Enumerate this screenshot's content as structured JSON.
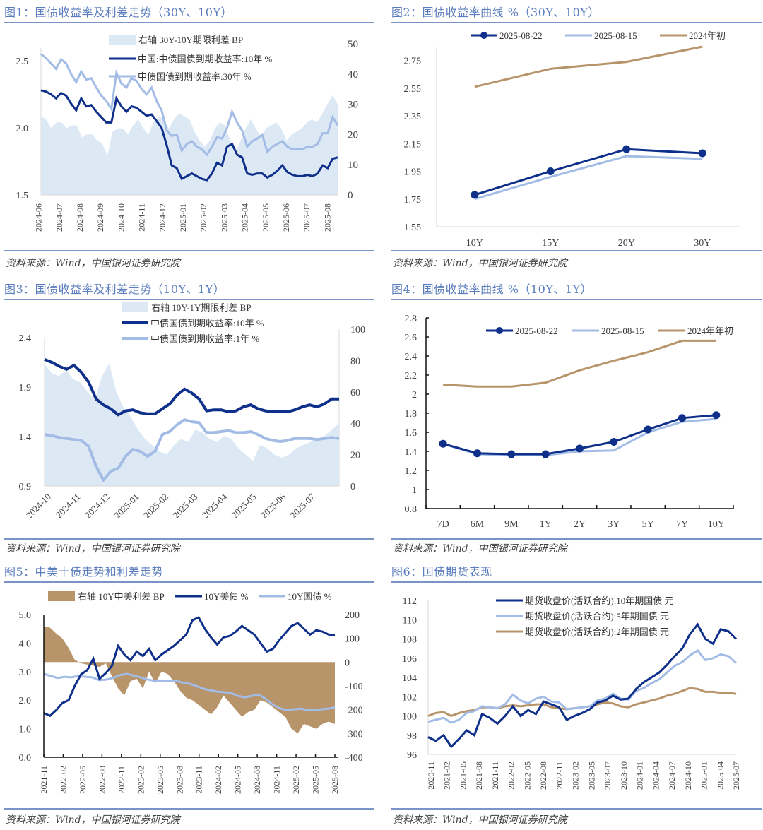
{
  "panels": [
    {
      "id": "fig1",
      "title": "图1：国债收益率及利差走势（30Y、10Y）",
      "source": "资料来源：Wind，中国银河证券研究院"
    },
    {
      "id": "fig2",
      "title": "图2：国债收益率曲线 %（30Y、10Y）",
      "source": "资料来源：Wind，中国银河证券研究院"
    },
    {
      "id": "fig3",
      "title": "图3：国债收益率及利差走势（10Y、1Y）",
      "source": "资料来源：Wind，中国银河证券研究院"
    },
    {
      "id": "fig4",
      "title": "图4：国债收益率曲线 %（10Y、1Y）",
      "source": "资料来源：Wind，中国银河证券研究院"
    },
    {
      "id": "fig5",
      "title": "图5：中美十债走势和利差走势",
      "source": "资料来源：Wind，中国银河证券研究院"
    },
    {
      "id": "fig6",
      "title": "图6：国债期货表现",
      "source": "资料来源：Wind，中国银河证券研究院"
    }
  ],
  "colors": {
    "dark_blue": "#0e2f8a",
    "light_blue": "#a3bce6",
    "area_blue": "#dde8f5",
    "tan": "#b8946a",
    "title_blue": "#5b7dbd"
  },
  "chart_data": [
    {
      "id": "fig1",
      "type": "line",
      "title": "国债收益率及利差走势（30Y、10Y）",
      "categories": [
        "2024-06",
        "2024-07",
        "2024-08",
        "2024-09",
        "2024-10",
        "2024-11",
        "2024-12",
        "2025-01",
        "2025-02",
        "2025-03",
        "2025-04",
        "2025-05",
        "2025-06",
        "2025-07",
        "2025-08"
      ],
      "ylim": [
        1.5,
        2.5
      ],
      "yticks": [
        "1.5",
        "2.0",
        "2.5"
      ],
      "y2lim": [
        0,
        50
      ],
      "y2ticks": [
        "0",
        "10",
        "20",
        "30",
        "40",
        "50"
      ],
      "series": [
        {
          "name": "右轴 30Y-10Y期限利差 BP",
          "axis": "right",
          "kind": "area",
          "values": [
            26,
            25,
            22,
            24,
            24,
            22,
            23,
            23,
            19,
            20,
            20,
            18,
            17,
            13,
            21,
            22,
            22,
            20,
            23,
            25,
            22,
            20,
            24,
            26,
            25,
            22,
            25,
            27,
            26,
            25,
            21,
            18,
            16,
            18,
            22,
            24,
            23,
            18,
            14,
            18,
            22,
            25,
            22,
            19,
            22,
            23,
            24,
            22,
            18,
            20,
            21,
            22,
            24,
            25,
            24,
            27,
            30,
            33,
            30
          ]
        },
        {
          "name": "中国:中债国债到期收益率:10年 %",
          "axis": "left",
          "kind": "line",
          "values": [
            2.28,
            2.27,
            2.25,
            2.22,
            2.26,
            2.24,
            2.18,
            2.13,
            2.22,
            2.16,
            2.17,
            2.12,
            2.08,
            2.04,
            2.04,
            2.22,
            2.16,
            2.12,
            2.16,
            2.15,
            2.12,
            2.09,
            2.1,
            2.05,
            2.0,
            1.87,
            1.72,
            1.7,
            1.62,
            1.64,
            1.66,
            1.64,
            1.62,
            1.61,
            1.66,
            1.74,
            1.72,
            1.86,
            1.88,
            1.8,
            1.78,
            1.66,
            1.65,
            1.66,
            1.66,
            1.63,
            1.65,
            1.68,
            1.72,
            1.67,
            1.65,
            1.64,
            1.64,
            1.65,
            1.64,
            1.66,
            1.72,
            1.7,
            1.77,
            1.78
          ]
        },
        {
          "name": "中债国债到期收益率:30年 %",
          "axis": "left",
          "kind": "line",
          "values": [
            2.55,
            2.52,
            2.48,
            2.44,
            2.51,
            2.48,
            2.4,
            2.34,
            2.42,
            2.36,
            2.37,
            2.3,
            2.24,
            2.2,
            2.14,
            2.41,
            2.33,
            2.3,
            2.37,
            2.35,
            2.29,
            2.25,
            2.3,
            2.2,
            2.13,
            1.98,
            1.94,
            1.95,
            1.83,
            1.88,
            1.9,
            1.86,
            1.84,
            1.8,
            1.86,
            1.93,
            1.92,
            2.0,
            2.12,
            2.04,
            1.98,
            1.86,
            1.9,
            1.92,
            1.95,
            1.82,
            1.86,
            1.88,
            1.9,
            1.86,
            1.84,
            1.84,
            1.84,
            1.86,
            1.86,
            1.88,
            1.96,
            1.96,
            2.08,
            2.02
          ]
        }
      ]
    },
    {
      "id": "fig2",
      "type": "line",
      "title": "国债收益率曲线 %（30Y、10Y）",
      "categories": [
        "10Y",
        "15Y",
        "20Y",
        "30Y"
      ],
      "ylim": [
        1.55,
        2.85
      ],
      "yticks": [
        "1.55",
        "1.75",
        "1.95",
        "2.15",
        "2.35",
        "2.55",
        "2.75"
      ],
      "legend": "top-center",
      "series": [
        {
          "name": "2025-08-22",
          "markers": true,
          "values": [
            1.78,
            1.95,
            2.11,
            2.08
          ]
        },
        {
          "name": "2025-08-15",
          "markers": false,
          "values": [
            1.75,
            1.91,
            2.06,
            2.04
          ]
        },
        {
          "name": "2024年初",
          "markers": false,
          "values": [
            2.56,
            2.69,
            2.74,
            2.85
          ]
        }
      ]
    },
    {
      "id": "fig3",
      "type": "line",
      "title": "国债收益率及利差走势（10Y、1Y）",
      "categories": [
        "2024-10",
        "2024-11",
        "2024-12",
        "2025-01",
        "2025-02",
        "2025-03",
        "2025-04",
        "2025-05",
        "2025-06",
        "2025-07"
      ],
      "ylim": [
        0.9,
        2.4
      ],
      "yticks": [
        "0.9",
        "1.4",
        "1.9",
        "2.4"
      ],
      "y2lim": [
        0,
        100
      ],
      "y2ticks": [
        "0",
        "20",
        "40",
        "60",
        "80",
        "100"
      ],
      "series": [
        {
          "name": "右轴 10Y-1Y期限利差 BP",
          "axis": "right",
          "kind": "area",
          "values": [
            78,
            72,
            70,
            74,
            68,
            66,
            60,
            55,
            70,
            78,
            60,
            50,
            44,
            36,
            30,
            26,
            22,
            20,
            26,
            30,
            28,
            36,
            34,
            30,
            28,
            32,
            30,
            24,
            20,
            16,
            26,
            24,
            20,
            18,
            20,
            24,
            26,
            28,
            30,
            32,
            36,
            40
          ]
        },
        {
          "name": "中债国债到期收益率:10年 %",
          "axis": "left",
          "kind": "line",
          "values": [
            2.18,
            2.15,
            2.11,
            2.08,
            2.12,
            2.05,
            1.95,
            1.78,
            1.72,
            1.68,
            1.62,
            1.66,
            1.67,
            1.64,
            1.63,
            1.63,
            1.68,
            1.73,
            1.82,
            1.88,
            1.84,
            1.78,
            1.66,
            1.67,
            1.67,
            1.65,
            1.66,
            1.7,
            1.72,
            1.68,
            1.66,
            1.65,
            1.65,
            1.65,
            1.67,
            1.7,
            1.72,
            1.7,
            1.73,
            1.78,
            1.78
          ]
        },
        {
          "name": "中债国债到期收益率:1年 %",
          "axis": "left",
          "kind": "line",
          "values": [
            1.42,
            1.41,
            1.39,
            1.38,
            1.37,
            1.36,
            1.3,
            1.1,
            0.96,
            1.05,
            1.08,
            1.2,
            1.27,
            1.25,
            1.2,
            1.25,
            1.42,
            1.45,
            1.52,
            1.57,
            1.55,
            1.54,
            1.44,
            1.44,
            1.45,
            1.46,
            1.44,
            1.44,
            1.45,
            1.42,
            1.38,
            1.36,
            1.35,
            1.36,
            1.38,
            1.38,
            1.38,
            1.37,
            1.38,
            1.39,
            1.38
          ]
        }
      ]
    },
    {
      "id": "fig4",
      "type": "line",
      "title": "国债收益率曲线 %（10Y、1Y）",
      "categories": [
        "7D",
        "6M",
        "9M",
        "1Y",
        "2Y",
        "3Y",
        "5Y",
        "7Y",
        "10Y"
      ],
      "ylim": [
        0.8,
        2.8
      ],
      "yticks": [
        "0.8",
        "1",
        "1.2",
        "1.4",
        "1.6",
        "1.8",
        "2",
        "2.2",
        "2.4",
        "2.6",
        "2.8"
      ],
      "legend": "top-right",
      "series": [
        {
          "name": "2025-08-22",
          "markers": true,
          "values": [
            1.48,
            1.38,
            1.37,
            1.37,
            1.43,
            1.5,
            1.63,
            1.75,
            1.78
          ]
        },
        {
          "name": "2025-08-15",
          "markers": false,
          "values": [
            1.48,
            1.37,
            1.36,
            1.36,
            1.4,
            1.41,
            1.6,
            1.71,
            1.74
          ]
        },
        {
          "name": "2024年年初",
          "markers": false,
          "values": [
            2.1,
            2.08,
            2.08,
            2.12,
            2.25,
            2.35,
            2.44,
            2.56,
            2.56
          ]
        }
      ]
    },
    {
      "id": "fig5",
      "type": "line",
      "title": "中美十债走势和利差走势",
      "categories": [
        "2021-11",
        "2022-02",
        "2022-05",
        "2022-08",
        "2022-11",
        "2023-02",
        "2023-05",
        "2023-08",
        "2023-11",
        "2024-02",
        "2024-05",
        "2024-08",
        "2024-11",
        "2025-02",
        "2025-05",
        "2025-08"
      ],
      "ylim": [
        0,
        5
      ],
      "yticks": [
        "0.0",
        "1.0",
        "2.0",
        "3.0",
        "4.0",
        "5.0"
      ],
      "y2lim": [
        -400,
        200
      ],
      "y2ticks": [
        "-400",
        "-300",
        "-200",
        "-100",
        "0",
        "100",
        "200"
      ],
      "legend": "top",
      "series": [
        {
          "name": "右轴 10Y中美利差 BP",
          "axis": "right",
          "kind": "area",
          "values": [
            150,
            145,
            120,
            100,
            60,
            10,
            -5,
            -10,
            -15,
            -20,
            -5,
            -60,
            -110,
            -140,
            -80,
            -70,
            -110,
            -40,
            -90,
            -40,
            -50,
            -80,
            -120,
            -150,
            -160,
            -180,
            -200,
            -220,
            -190,
            -140,
            -170,
            -200,
            -230,
            -210,
            -200,
            -160,
            -170,
            -190,
            -210,
            -230,
            -280,
            -300,
            -260,
            -270,
            -280,
            -260,
            -250,
            -260
          ]
        },
        {
          "name": "10Y美债 %",
          "axis": "left",
          "kind": "line",
          "values": [
            1.55,
            1.45,
            1.65,
            1.9,
            2.0,
            2.5,
            2.9,
            3.05,
            3.45,
            2.75,
            2.95,
            3.2,
            3.9,
            3.6,
            3.4,
            3.7,
            3.55,
            3.8,
            3.4,
            3.6,
            3.75,
            3.9,
            4.1,
            4.3,
            4.8,
            4.9,
            4.5,
            4.2,
            3.95,
            4.2,
            4.25,
            4.4,
            4.6,
            4.45,
            4.3,
            4.0,
            3.7,
            3.8,
            4.1,
            4.35,
            4.6,
            4.7,
            4.5,
            4.3,
            4.45,
            4.4,
            4.3,
            4.28
          ]
        },
        {
          "name": "10Y国债 %",
          "axis": "left",
          "kind": "line",
          "values": [
            2.92,
            2.85,
            2.78,
            2.82,
            2.8,
            2.85,
            2.82,
            2.8,
            2.7,
            2.72,
            2.78,
            2.88,
            2.92,
            2.86,
            2.8,
            2.72,
            2.68,
            2.68,
            2.66,
            2.68,
            2.62,
            2.58,
            2.5,
            2.4,
            2.35,
            2.3,
            2.28,
            2.25,
            2.15,
            2.1,
            2.15,
            2.2,
            2.05,
            1.85,
            1.72,
            1.65,
            1.68,
            1.7,
            1.66,
            1.65,
            1.68,
            1.7,
            1.75
          ]
        }
      ]
    },
    {
      "id": "fig6",
      "type": "line",
      "title": "国债期货表现",
      "categories": [
        "2020-11",
        "2021-02",
        "2021-05",
        "2021-08",
        "2021-11",
        "2022-02",
        "2022-05",
        "2022-08",
        "2022-11",
        "2023-02",
        "2023-05",
        "2023-07",
        "2023-10",
        "2024-01",
        "2024-04",
        "2024-07",
        "2024-10",
        "2025-01",
        "2025-04",
        "2025-07"
      ],
      "ylim": [
        96,
        112
      ],
      "yticks": [
        "96",
        "98",
        "100",
        "102",
        "104",
        "106",
        "108",
        "110",
        "112"
      ],
      "legend": "top-center",
      "series": [
        {
          "name": "期货收盘价(活跃合约):10年期国债 元",
          "values": [
            97.8,
            97.4,
            98.0,
            96.8,
            97.6,
            98.5,
            98.0,
            100.2,
            99.8,
            99.2,
            100.0,
            101.0,
            100.0,
            100.6,
            100.2,
            101.5,
            101.2,
            100.9,
            99.6,
            100.0,
            100.3,
            100.7,
            101.4,
            101.6,
            102.1,
            101.7,
            101.8,
            102.8,
            103.5,
            104.0,
            104.5,
            105.3,
            106.2,
            107.0,
            108.5,
            109.5,
            108.0,
            107.5,
            109.0,
            108.8,
            108.0
          ]
        },
        {
          "name": "期货收盘价(活跃合约):5年期国债 元",
          "values": [
            99.4,
            99.6,
            99.8,
            99.3,
            99.6,
            100.3,
            100.5,
            101.0,
            100.9,
            100.8,
            101.2,
            102.2,
            101.6,
            101.3,
            101.8,
            102.0,
            101.5,
            101.4,
            100.7,
            100.8,
            100.9,
            101.0,
            101.6,
            101.8,
            102.3,
            101.8,
            101.7,
            102.6,
            102.9,
            103.4,
            103.8,
            104.5,
            105.2,
            105.6,
            106.3,
            106.8,
            105.8,
            106.0,
            106.4,
            106.2,
            105.5
          ]
        },
        {
          "name": "期货收盘价(活跃合约):2年期国债 元",
          "values": [
            100.0,
            100.3,
            100.4,
            100.0,
            100.3,
            100.5,
            100.6,
            100.9,
            100.9,
            100.8,
            101.0,
            101.1,
            101.0,
            101.1,
            101.2,
            101.2,
            100.9,
            100.8,
            100.7,
            100.8,
            100.9,
            101.0,
            101.2,
            101.4,
            101.3,
            101.0,
            100.9,
            101.2,
            101.4,
            101.6,
            101.8,
            102.1,
            102.3,
            102.6,
            102.9,
            102.8,
            102.5,
            102.5,
            102.4,
            102.4,
            102.3
          ]
        }
      ]
    }
  ]
}
